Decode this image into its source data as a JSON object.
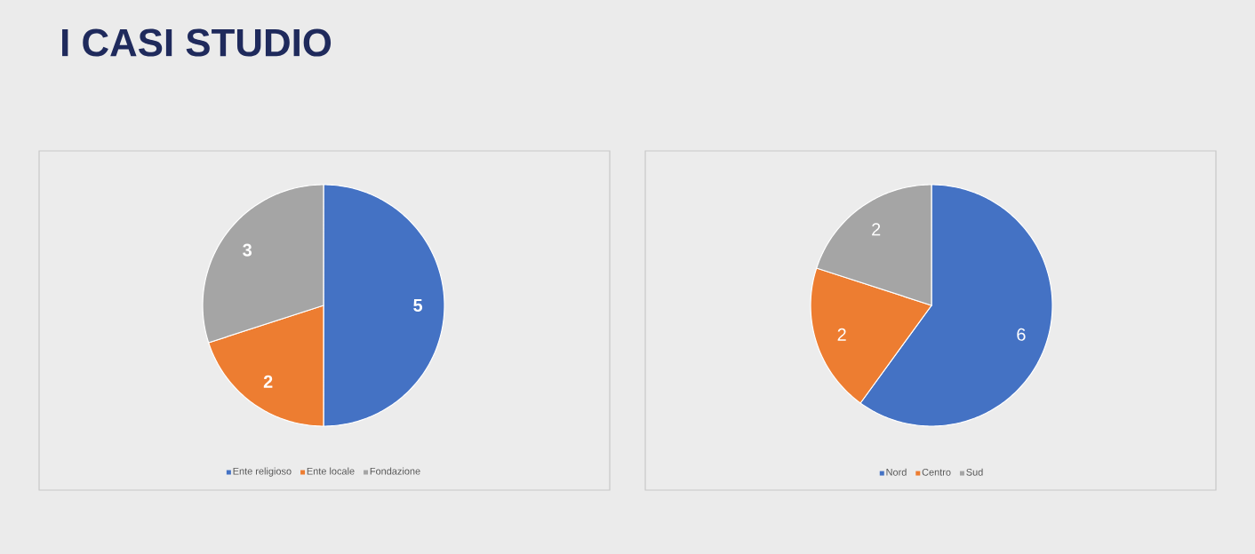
{
  "chart_data": [
    {
      "type": "pie",
      "title": "I CASI STUDIO",
      "categories": [
        "Ente religioso",
        "Ente locale",
        "Fondazione"
      ],
      "values": [
        5,
        2,
        3
      ],
      "colors": [
        "#4472c4",
        "#ed7d31",
        "#a5a5a5"
      ],
      "data_labels": true,
      "legend": "bottom"
    },
    {
      "type": "pie",
      "categories": [
        "Nord",
        "Centro",
        "Sud"
      ],
      "values": [
        6,
        2,
        2
      ],
      "colors": [
        "#4472c4",
        "#ed7d31",
        "#a5a5a5"
      ],
      "data_labels": true,
      "legend": "bottom"
    }
  ]
}
